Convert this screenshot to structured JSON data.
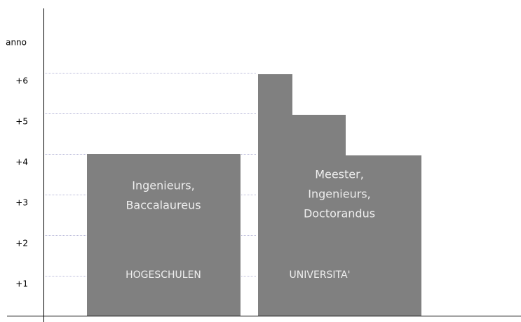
{
  "axis_label": "anno",
  "ticks": [
    "+1",
    "+2",
    "+3",
    "+4",
    "+5",
    "+6"
  ],
  "blocks": [
    {
      "name": "HOGESCHULEN",
      "degrees": [
        "Ingenieurs,",
        "Baccalaureus"
      ]
    },
    {
      "name": "UNIVERSITA'",
      "degrees": [
        "Meester,",
        "Ingenieurs,",
        "Doctorandus"
      ]
    }
  ]
}
